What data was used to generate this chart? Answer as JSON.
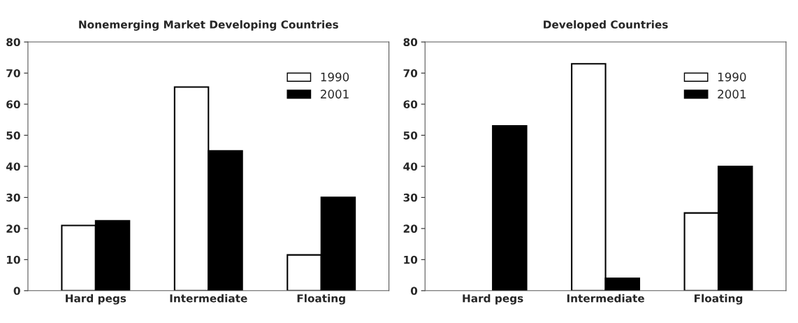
{
  "chart_data": [
    {
      "type": "bar",
      "title": "Nonemerging Market Developing Countries",
      "categories": [
        "Hard pegs",
        "Intermediate",
        "Floating"
      ],
      "ylim": [
        0,
        80
      ],
      "yticks": [
        0,
        10,
        20,
        30,
        40,
        50,
        60,
        70,
        80
      ],
      "grid": false,
      "legend": "top right",
      "series": [
        {
          "name": "1990",
          "color": "#ffffff",
          "values": [
            21,
            65.5,
            11.5
          ]
        },
        {
          "name": "2001",
          "color": "#000000",
          "values": [
            22.5,
            45,
            30
          ]
        }
      ]
    },
    {
      "type": "bar",
      "title": "Developed Countries",
      "categories": [
        "Hard pegs",
        "Intermediate",
        "Floating"
      ],
      "ylim": [
        0,
        80
      ],
      "yticks": [
        0,
        10,
        20,
        30,
        40,
        50,
        60,
        70,
        80
      ],
      "grid": false,
      "legend": "top right",
      "series": [
        {
          "name": "1990",
          "color": "#ffffff",
          "values": [
            null,
            73,
            25
          ]
        },
        {
          "name": "2001",
          "color": "#000000",
          "values": [
            53,
            4,
            40
          ]
        }
      ]
    }
  ]
}
